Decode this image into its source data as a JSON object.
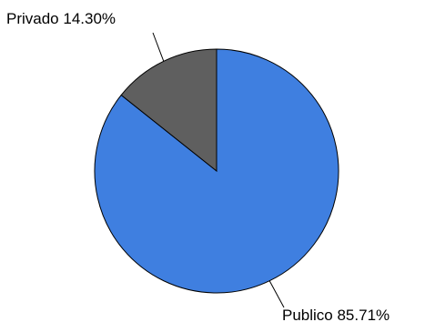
{
  "chart_data": {
    "type": "pie",
    "title": "",
    "categories": [
      "Publico",
      "Privado"
    ],
    "values": [
      85.71,
      14.3
    ],
    "labels": [
      "Publico 85.71%",
      "Privado 14.30%"
    ],
    "colors": [
      "#3f7fe0",
      "#5f5f5f"
    ],
    "legend": "none",
    "start_angle": "12 o'clock",
    "direction": "clockwise"
  }
}
